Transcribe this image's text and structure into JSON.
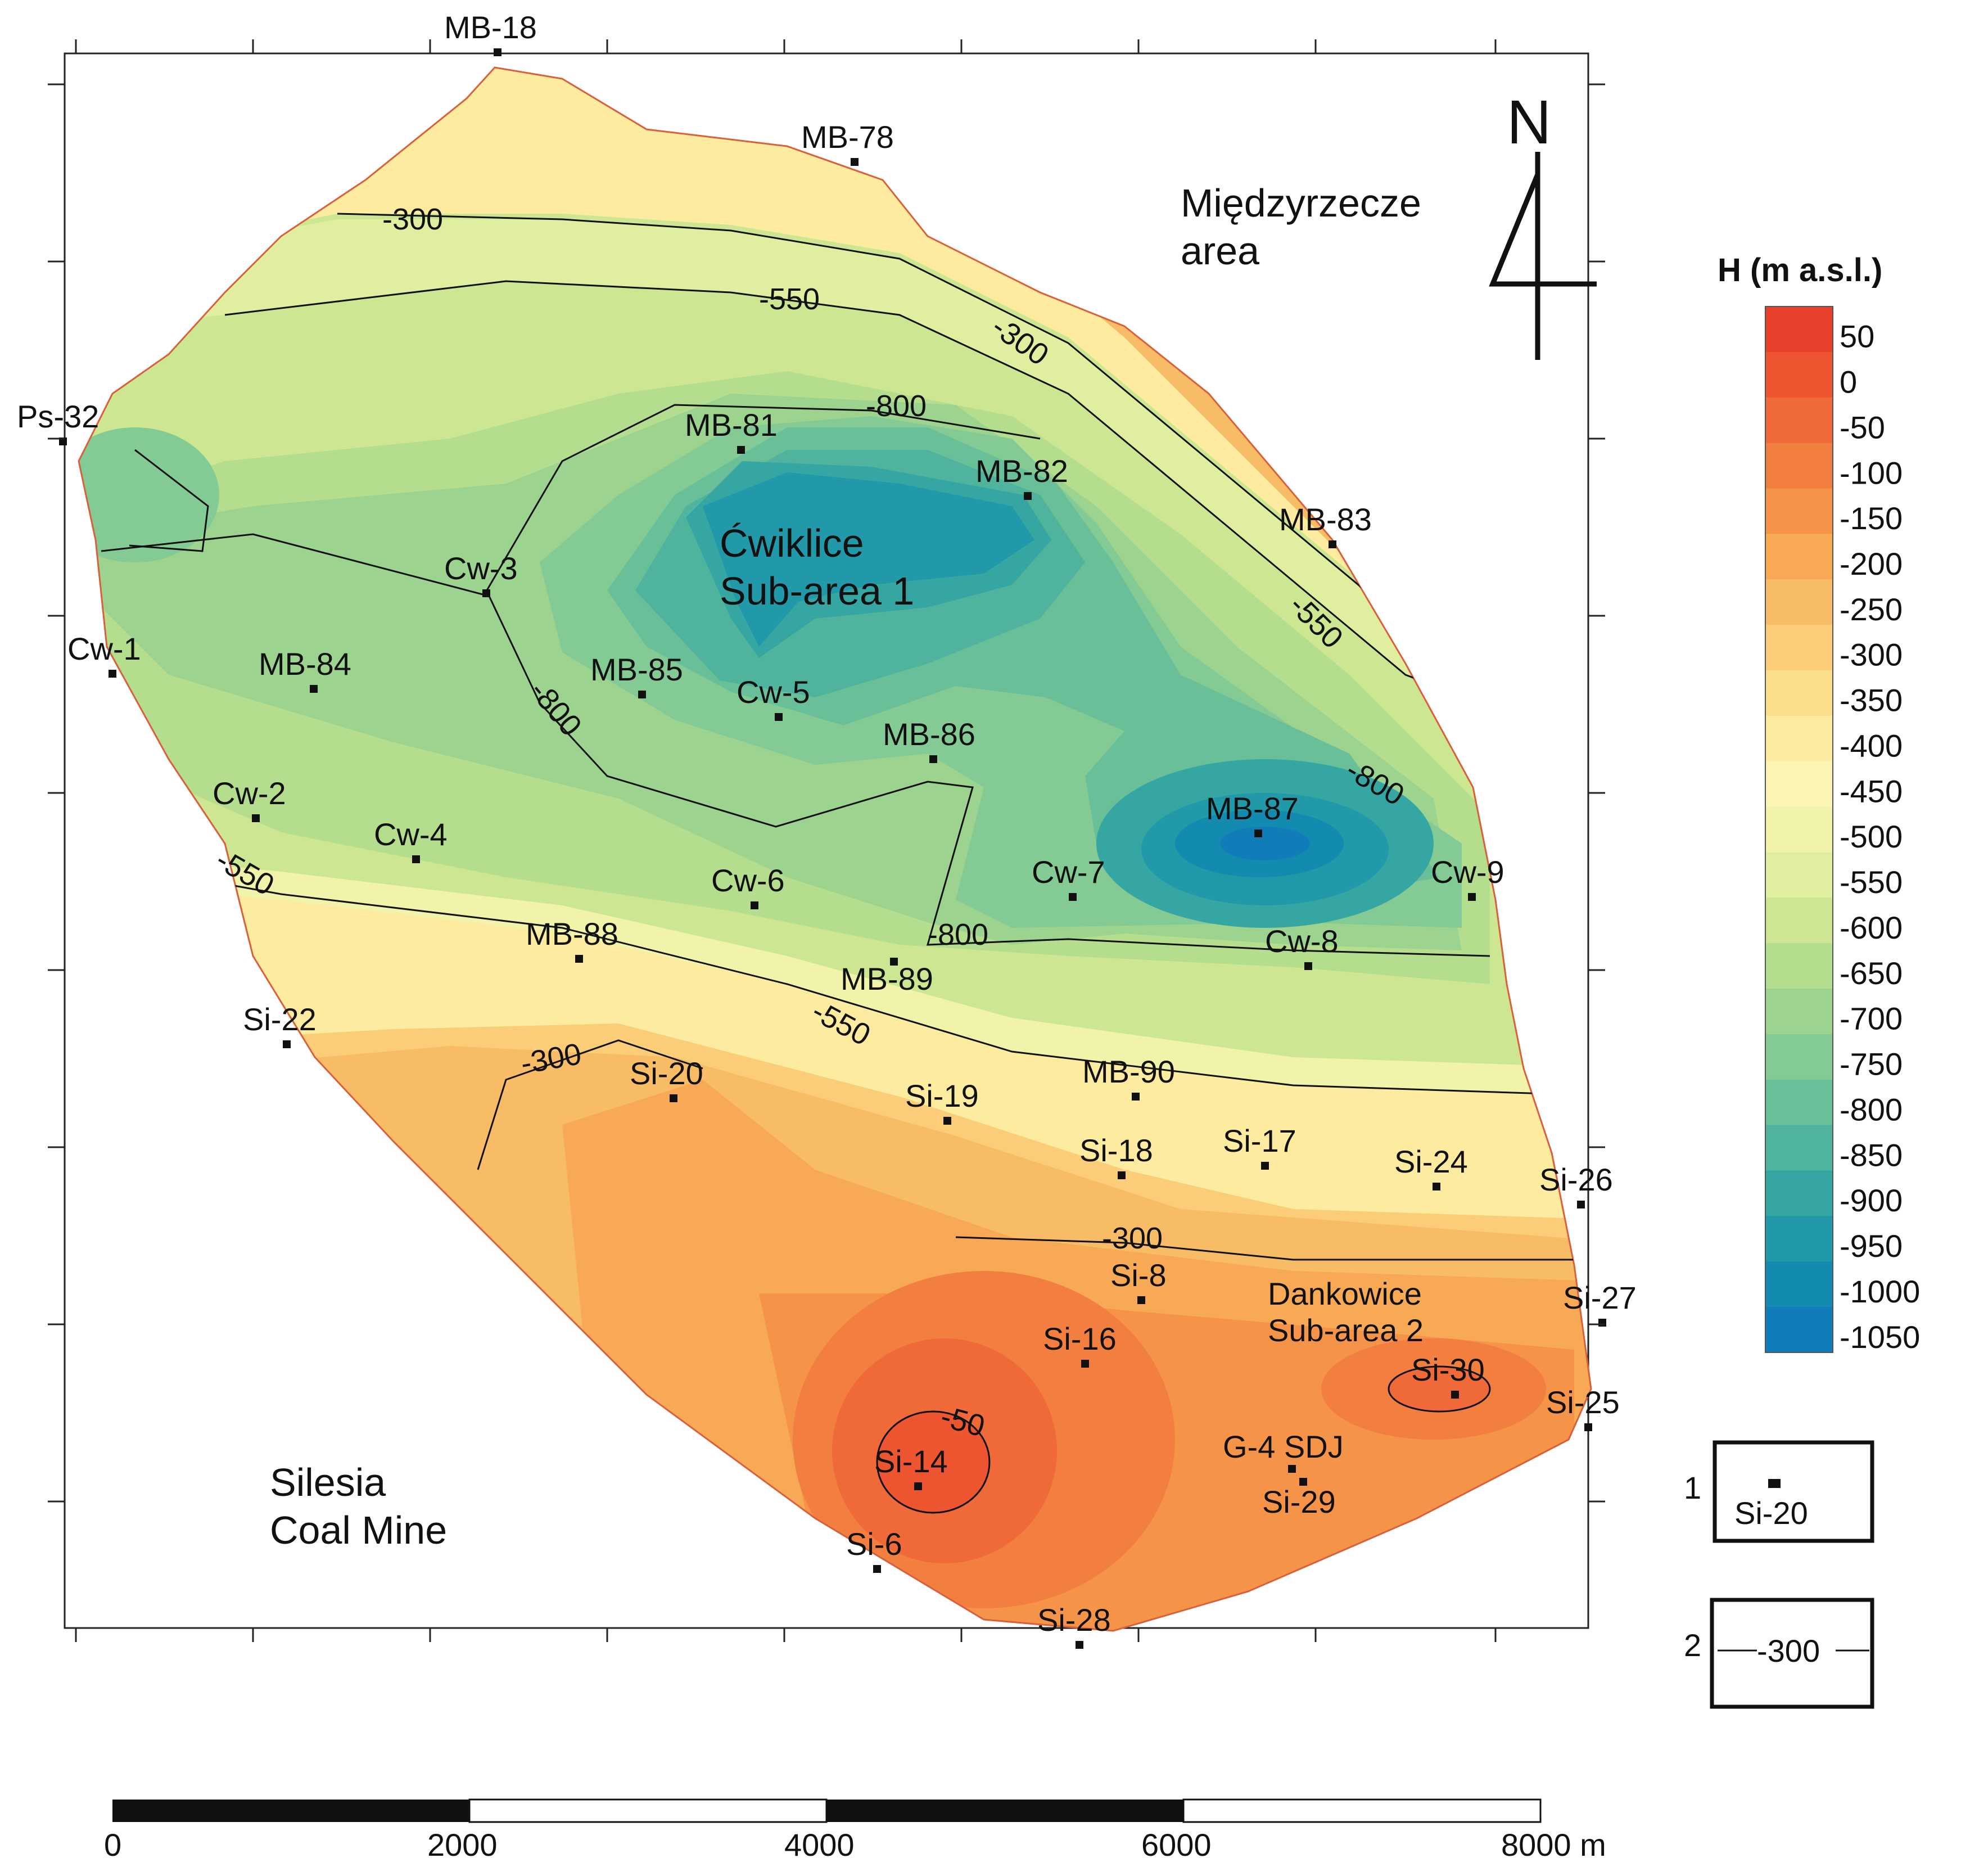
{
  "map": {
    "north_label": "N",
    "areas": [
      {
        "id": "miedzyrzecze",
        "lines": [
          "Międzyrzecze",
          "area"
        ]
      },
      {
        "id": "cwiklice",
        "lines": [
          "Ćwiklice",
          "Sub-area 1"
        ]
      },
      {
        "id": "dankowice",
        "lines": [
          "Dankowice",
          "Sub-area 2"
        ]
      },
      {
        "id": "silesia",
        "lines": [
          "Silesia",
          "Coal Mine"
        ]
      }
    ],
    "wells": [
      "MB-18",
      "MB-78",
      "Ps-32",
      "MB-81",
      "MB-82",
      "MB-83",
      "Cw-3",
      "Cw-1",
      "MB-84",
      "MB-85",
      "Cw-5",
      "MB-86",
      "Cw-2",
      "Cw-4",
      "MB-87",
      "Cw-6",
      "Cw-7",
      "Cw-9",
      "MB-88",
      "MB-89",
      "Cw-8",
      "Si-22",
      "Si-20",
      "Si-19",
      "MB-90",
      "Si-18",
      "Si-17",
      "Si-24",
      "Si-26",
      "Si-8",
      "Si-27",
      "Si-16",
      "Si-30",
      "Si-25",
      "Si-14",
      "G-4 SDJ",
      "Si-29",
      "Si-6",
      "Si-28"
    ],
    "contour_labels": [
      "-300",
      "-300",
      "-550",
      "-800",
      "-550",
      "-800",
      "-800",
      "-550",
      "-800",
      "-550",
      "-300",
      "-300",
      "-50"
    ]
  },
  "legend": {
    "title": "H (m a.s.l.)",
    "levels": [
      "50",
      "0",
      "-50",
      "-100",
      "-150",
      "-200",
      "-250",
      "-300",
      "-350",
      "-400",
      "-450",
      "-500",
      "-550",
      "-600",
      "-650",
      "-700",
      "-750",
      "-800",
      "-850",
      "-900",
      "-950",
      "-1000",
      "-1050"
    ],
    "colors": [
      "#e8402b",
      "#ec5530",
      "#ef6a38",
      "#f27f40",
      "#f59449",
      "#f8a956",
      "#f9bc66",
      "#fbcd78",
      "#fcde8c",
      "#fdeba0",
      "#fbf4b2",
      "#f1f3ab",
      "#e0ee9f",
      "#cce692",
      "#b5dd8e",
      "#9cd38f",
      "#84ca94",
      "#69bf98",
      "#4fb39d",
      "#36a6a2",
      "#2199a8",
      "#138bb0",
      "#107db8"
    ],
    "symbol_items": [
      {
        "number": "1",
        "label": "Si-20"
      },
      {
        "number": "2",
        "label": "-300"
      }
    ]
  },
  "scale_bar": {
    "ticks": [
      "0",
      "2000",
      "4000",
      "6000",
      "8000 m"
    ]
  }
}
